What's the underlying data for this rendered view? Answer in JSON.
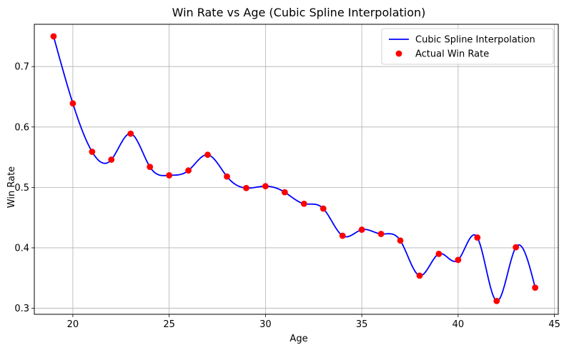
{
  "chart_data": {
    "type": "line",
    "title": "Win Rate vs Age (Cubic Spline Interpolation)",
    "xlabel": "Age",
    "ylabel": "Win Rate",
    "xlim": [
      18,
      45.2
    ],
    "ylim": [
      0.29,
      0.77
    ],
    "xticks": [
      20,
      25,
      30,
      35,
      40,
      45
    ],
    "yticks": [
      0.3,
      0.4,
      0.5,
      0.6,
      0.7
    ],
    "xtick_labels": [
      "20",
      "25",
      "30",
      "35",
      "40",
      "45"
    ],
    "ytick_labels": [
      "0.3",
      "0.4",
      "0.5",
      "0.6",
      "0.7"
    ],
    "grid": true,
    "legend_position": "top-right",
    "x": [
      19,
      20,
      21,
      22,
      23,
      24,
      25,
      26,
      27,
      28,
      29,
      30,
      31,
      32,
      33,
      34,
      35,
      36,
      37,
      38,
      39,
      40,
      41,
      42,
      43,
      44
    ],
    "series": [
      {
        "name": "Cubic Spline Interpolation",
        "kind": "line",
        "color": "#0000ff",
        "values": [
          0.75,
          0.639,
          0.559,
          0.546,
          0.589,
          0.534,
          0.52,
          0.528,
          0.554,
          0.518,
          0.499,
          0.502,
          0.492,
          0.473,
          0.465,
          0.42,
          0.43,
          0.423,
          0.412,
          0.354,
          0.39,
          0.38,
          0.417,
          0.312,
          0.401,
          0.334
        ]
      },
      {
        "name": "Actual Win Rate",
        "kind": "scatter",
        "color": "#ff0000",
        "values": [
          0.75,
          0.639,
          0.559,
          0.546,
          0.589,
          0.534,
          0.52,
          0.528,
          0.554,
          0.518,
          0.499,
          0.502,
          0.492,
          0.473,
          0.465,
          0.42,
          0.43,
          0.423,
          0.412,
          0.354,
          0.39,
          0.38,
          0.417,
          0.312,
          0.401,
          0.334
        ]
      }
    ]
  }
}
